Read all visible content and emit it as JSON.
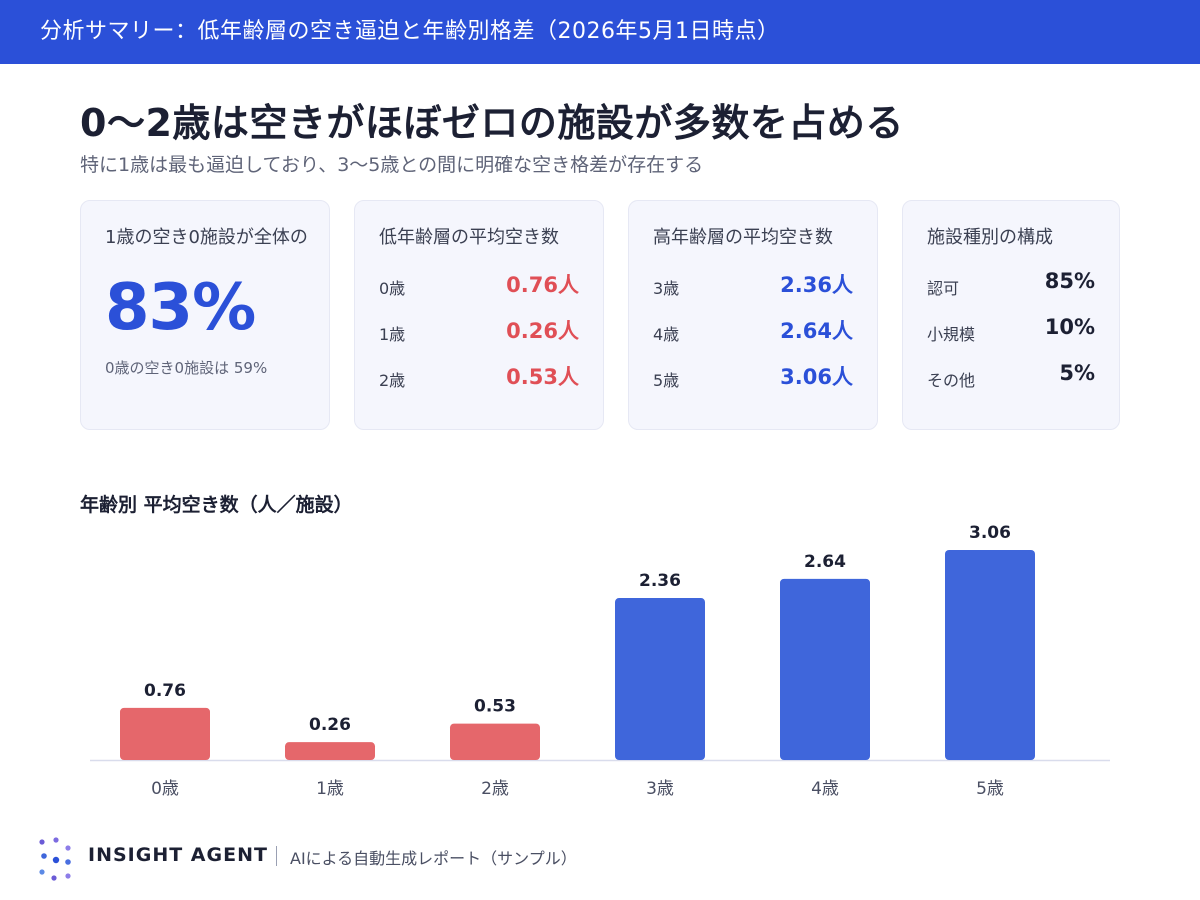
{
  "header": {
    "title": "分析サマリー：低年齢層の空き逼迫と年齢別格差（2026年5月1日時点）"
  },
  "headline": "0〜2歳は空きがほぼゼロの施設が多数を占める",
  "subline": "特に1歳は最も逼迫しており、3〜5歳との間に明確な空き格差が存在する",
  "cards": {
    "zero_vacancy": {
      "title": "1歳の空き0施設が全体の",
      "value": "83%",
      "note": "0歳の空き0施設は 59%"
    },
    "low_age": {
      "title": "低年齢層の平均空き数",
      "rows": [
        {
          "label": "0歳",
          "value": "0.76人"
        },
        {
          "label": "1歳",
          "value": "0.26人"
        },
        {
          "label": "2歳",
          "value": "0.53人"
        }
      ]
    },
    "high_age": {
      "title": "高年齢層の平均空き数",
      "rows": [
        {
          "label": "3歳",
          "value": "2.36人"
        },
        {
          "label": "4歳",
          "value": "2.64人"
        },
        {
          "label": "5歳",
          "value": "3.06人"
        }
      ]
    },
    "facility_types": {
      "title": "施設種別の構成",
      "rows": [
        {
          "label": "認可",
          "value": "85%"
        },
        {
          "label": "小規模",
          "value": "10%"
        },
        {
          "label": "その他",
          "value": "5%"
        }
      ]
    }
  },
  "chart_data": {
    "type": "bar",
    "title": "年齢別 平均空き数（人／施設）",
    "categories": [
      "0歳",
      "1歳",
      "2歳",
      "3歳",
      "4歳",
      "5歳"
    ],
    "values": [
      0.76,
      0.26,
      0.53,
      2.36,
      2.64,
      3.06
    ],
    "data_labels": [
      "0.76",
      "0.26",
      "0.53",
      "2.36",
      "2.64",
      "3.06"
    ],
    "ylim": [
      0,
      3.06
    ],
    "grid": false,
    "colors": {
      "low_age": "#e5676b",
      "high_age": "#3f66db",
      "baseline": "#d9dcec"
    },
    "low_age_categories": [
      "0歳",
      "1歳",
      "2歳"
    ]
  },
  "footer": {
    "brand": "INSIGHT AGENT",
    "note": "AIによる自動生成レポート（サンプル）",
    "logo_icon": "dots-logo-icon"
  }
}
